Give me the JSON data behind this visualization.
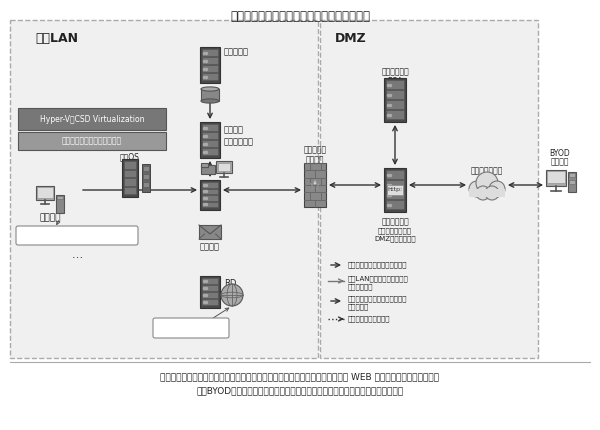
{
  "title": "図８－３　某病院における仮想化環境構築例",
  "caption_line1": "（端末から、電子カルテ、グループウェアのみならず、電子メールの送受信や WEB 閲覧が可能。さらに外部端",
  "caption_line2": "末（BYOD）から、インターネットを経由して基幹システムに入ることが可能。）",
  "lan_label": "院内LAN",
  "dmz_label": "DMZ",
  "bg_color": "#ffffff",
  "text_color": "#222222"
}
